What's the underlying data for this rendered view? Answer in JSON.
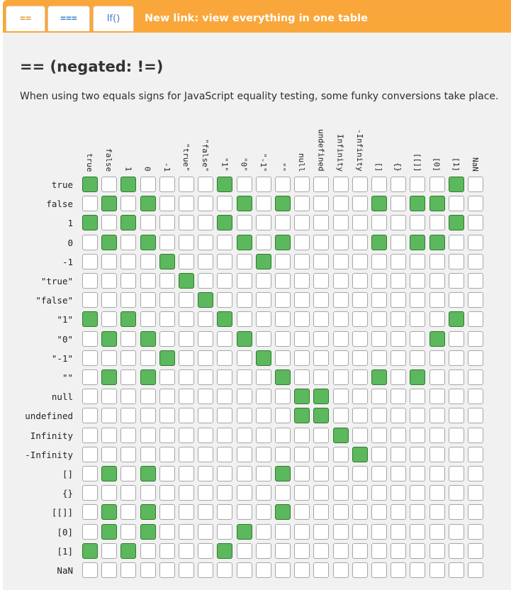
{
  "tabs": [
    {
      "label": "==",
      "state": "active"
    },
    {
      "label": "===",
      "state": "inactive"
    },
    {
      "label": "If()",
      "state": "inactive"
    }
  ],
  "new_link": "New link: view everything in one table",
  "page_title": "== (negated: !=)",
  "description": "When using two equals signs for JavaScript equality testing, some funky conversions take place.",
  "colors": {
    "tab_bar": "#f9a73b",
    "equal_cell": "#5cb85c",
    "content_bg": "#f1f1f1"
  },
  "values": [
    "true",
    "false",
    "1",
    "0",
    "-1",
    "\"true\"",
    "\"false\"",
    "\"1\"",
    "\"0\"",
    "\"-1\"",
    "\"\"",
    "null",
    "undefined",
    "Infinity",
    "-Infinity",
    "[]",
    "{}",
    "[[]]",
    "[0]",
    "[1]",
    "NaN"
  ],
  "matrix": [
    [
      1,
      0,
      1,
      0,
      0,
      0,
      0,
      1,
      0,
      0,
      0,
      0,
      0,
      0,
      0,
      0,
      0,
      0,
      0,
      1,
      0
    ],
    [
      0,
      1,
      0,
      1,
      0,
      0,
      0,
      0,
      1,
      0,
      1,
      0,
      0,
      0,
      0,
      1,
      0,
      1,
      1,
      0,
      0
    ],
    [
      1,
      0,
      1,
      0,
      0,
      0,
      0,
      1,
      0,
      0,
      0,
      0,
      0,
      0,
      0,
      0,
      0,
      0,
      0,
      1,
      0
    ],
    [
      0,
      1,
      0,
      1,
      0,
      0,
      0,
      0,
      1,
      0,
      1,
      0,
      0,
      0,
      0,
      1,
      0,
      1,
      1,
      0,
      0
    ],
    [
      0,
      0,
      0,
      0,
      1,
      0,
      0,
      0,
      0,
      1,
      0,
      0,
      0,
      0,
      0,
      0,
      0,
      0,
      0,
      0,
      0
    ],
    [
      0,
      0,
      0,
      0,
      0,
      1,
      0,
      0,
      0,
      0,
      0,
      0,
      0,
      0,
      0,
      0,
      0,
      0,
      0,
      0,
      0
    ],
    [
      0,
      0,
      0,
      0,
      0,
      0,
      1,
      0,
      0,
      0,
      0,
      0,
      0,
      0,
      0,
      0,
      0,
      0,
      0,
      0,
      0
    ],
    [
      1,
      0,
      1,
      0,
      0,
      0,
      0,
      1,
      0,
      0,
      0,
      0,
      0,
      0,
      0,
      0,
      0,
      0,
      0,
      1,
      0
    ],
    [
      0,
      1,
      0,
      1,
      0,
      0,
      0,
      0,
      1,
      0,
      0,
      0,
      0,
      0,
      0,
      0,
      0,
      0,
      1,
      0,
      0
    ],
    [
      0,
      0,
      0,
      0,
      1,
      0,
      0,
      0,
      0,
      1,
      0,
      0,
      0,
      0,
      0,
      0,
      0,
      0,
      0,
      0,
      0
    ],
    [
      0,
      1,
      0,
      1,
      0,
      0,
      0,
      0,
      0,
      0,
      1,
      0,
      0,
      0,
      0,
      1,
      0,
      1,
      0,
      0,
      0
    ],
    [
      0,
      0,
      0,
      0,
      0,
      0,
      0,
      0,
      0,
      0,
      0,
      1,
      1,
      0,
      0,
      0,
      0,
      0,
      0,
      0,
      0
    ],
    [
      0,
      0,
      0,
      0,
      0,
      0,
      0,
      0,
      0,
      0,
      0,
      1,
      1,
      0,
      0,
      0,
      0,
      0,
      0,
      0,
      0
    ],
    [
      0,
      0,
      0,
      0,
      0,
      0,
      0,
      0,
      0,
      0,
      0,
      0,
      0,
      1,
      0,
      0,
      0,
      0,
      0,
      0,
      0
    ],
    [
      0,
      0,
      0,
      0,
      0,
      0,
      0,
      0,
      0,
      0,
      0,
      0,
      0,
      0,
      1,
      0,
      0,
      0,
      0,
      0,
      0
    ],
    [
      0,
      1,
      0,
      1,
      0,
      0,
      0,
      0,
      0,
      0,
      1,
      0,
      0,
      0,
      0,
      0,
      0,
      0,
      0,
      0,
      0
    ],
    [
      0,
      0,
      0,
      0,
      0,
      0,
      0,
      0,
      0,
      0,
      0,
      0,
      0,
      0,
      0,
      0,
      0,
      0,
      0,
      0,
      0
    ],
    [
      0,
      1,
      0,
      1,
      0,
      0,
      0,
      0,
      0,
      0,
      1,
      0,
      0,
      0,
      0,
      0,
      0,
      0,
      0,
      0,
      0
    ],
    [
      0,
      1,
      0,
      1,
      0,
      0,
      0,
      0,
      1,
      0,
      0,
      0,
      0,
      0,
      0,
      0,
      0,
      0,
      0,
      0,
      0
    ],
    [
      1,
      0,
      1,
      0,
      0,
      0,
      0,
      1,
      0,
      0,
      0,
      0,
      0,
      0,
      0,
      0,
      0,
      0,
      0,
      0,
      0
    ],
    [
      0,
      0,
      0,
      0,
      0,
      0,
      0,
      0,
      0,
      0,
      0,
      0,
      0,
      0,
      0,
      0,
      0,
      0,
      0,
      0,
      0
    ]
  ]
}
